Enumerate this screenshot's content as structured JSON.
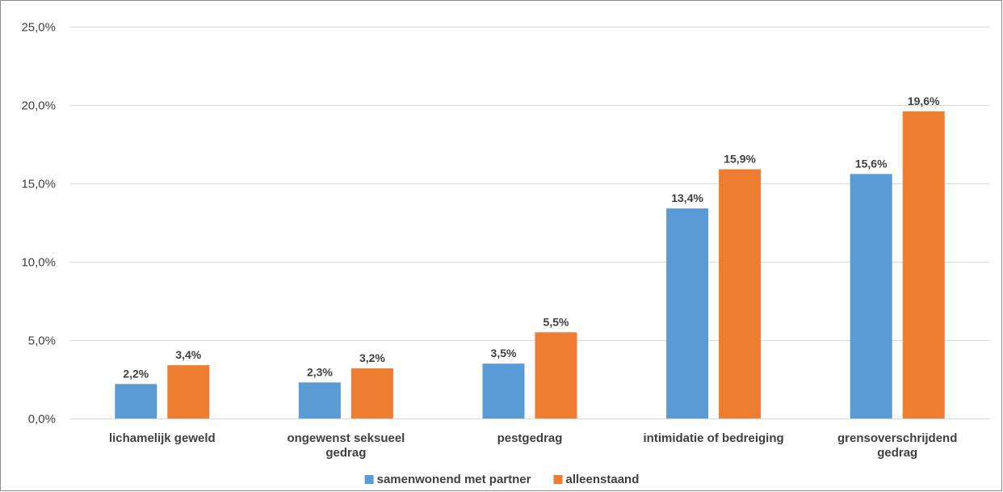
{
  "chart_data": {
    "type": "bar",
    "categories": [
      [
        "lichamelijk geweld"
      ],
      [
        "ongewenst seksueel",
        "gedrag"
      ],
      [
        "pestgedrag"
      ],
      [
        "intimidatie of bedreiging"
      ],
      [
        "grensoverschrijdend",
        "gedrag"
      ]
    ],
    "series": [
      {
        "name": "samenwonend met partner",
        "color": "#5b9bd5",
        "values": [
          2.2,
          2.3,
          3.5,
          13.4,
          15.6
        ],
        "labels": [
          "2,2%",
          "2,3%",
          "3,5%",
          "13,4%",
          "15,6%"
        ]
      },
      {
        "name": "alleenstaand",
        "color": "#ed7d31",
        "values": [
          3.4,
          3.2,
          5.5,
          15.9,
          19.6
        ],
        "labels": [
          "3,4%",
          "3,2%",
          "5,5%",
          "15,9%",
          "19,6%"
        ]
      }
    ],
    "ylim": [
      0,
      25
    ],
    "yticks": [
      0,
      5,
      10,
      15,
      20,
      25
    ],
    "ytick_labels": [
      "0,0%",
      "5,0%",
      "10,0%",
      "15,0%",
      "20,0%",
      "25,0%"
    ],
    "grid": true,
    "gridline_color": "#d9d9d9",
    "legend_position": "bottom",
    "title": "",
    "xlabel": "",
    "ylabel": ""
  }
}
